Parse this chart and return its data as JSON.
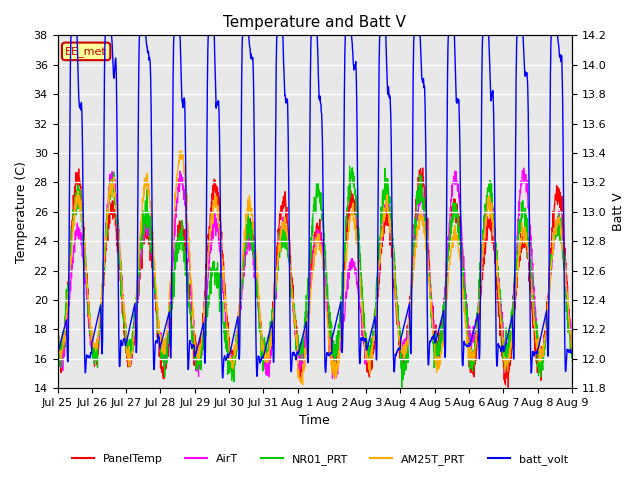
{
  "title": "Temperature and Batt V",
  "xlabel": "Time",
  "ylabel_left": "Temperature (C)",
  "ylabel_right": "Batt V",
  "ylim_left": [
    14,
    38
  ],
  "ylim_right": [
    11.8,
    14.2
  ],
  "yticks_left": [
    14,
    16,
    18,
    20,
    22,
    24,
    26,
    28,
    30,
    32,
    34,
    36,
    38
  ],
  "yticks_right": [
    11.8,
    12.0,
    12.2,
    12.4,
    12.6,
    12.8,
    13.0,
    13.2,
    13.4,
    13.6,
    13.8,
    14.0,
    14.2
  ],
  "annotation_text": "EE_met",
  "annotation_color": "#cc0000",
  "annotation_bg": "#ffff99",
  "num_days": 15,
  "series_colors": {
    "PanelTemp": "#ff0000",
    "AirT": "#ff00ff",
    "NR01_PRT": "#00cc00",
    "AM25T_PRT": "#ffaa00",
    "batt_volt": "#0000ff"
  },
  "legend_labels": [
    "PanelTemp",
    "AirT",
    "NR01_PRT",
    "AM25T_PRT",
    "batt_volt"
  ],
  "xtick_labels": [
    "Jul 25",
    "Jul 26",
    "Jul 27",
    "Jul 28",
    "Jul 29",
    "Jul 30",
    "Jul 31",
    "Aug 1",
    "Aug 2",
    "Aug 3",
    "Aug 4",
    "Aug 5",
    "Aug 6",
    "Aug 7",
    "Aug 8",
    "Aug 9"
  ],
  "background_color": "#e8e8e8",
  "plot_bg": "#ffffff"
}
